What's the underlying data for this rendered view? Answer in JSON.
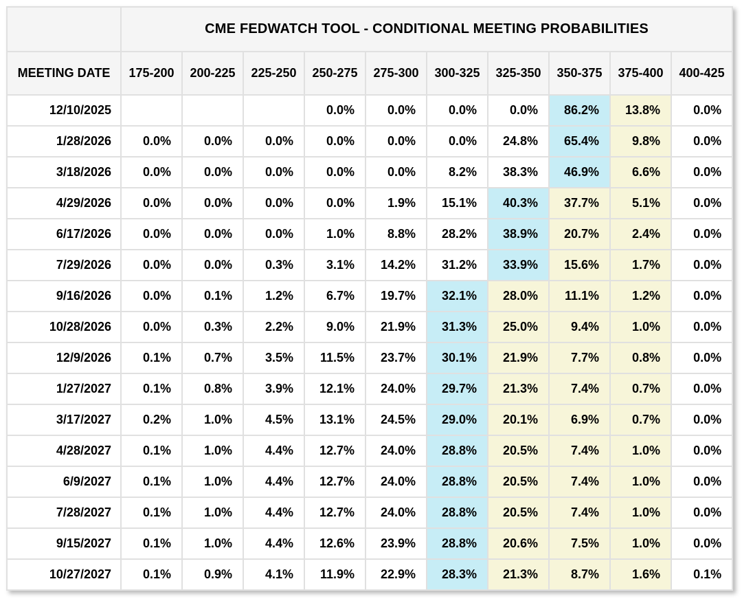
{
  "chart_data": {
    "type": "table",
    "title": "CME FEDWATCH TOOL - CONDITIONAL MEETING PROBABILITIES",
    "row_header": "MEETING DATE",
    "columns": [
      "175-200",
      "200-225",
      "225-250",
      "250-275",
      "275-300",
      "300-325",
      "325-350",
      "350-375",
      "375-400",
      "400-425"
    ],
    "rows": [
      {
        "date": "12/10/2025",
        "values": [
          "",
          "",
          "",
          "0.0%",
          "0.0%",
          "0.0%",
          "0.0%",
          "86.2%",
          "13.8%",
          "0.0%"
        ],
        "cell_colors": [
          "",
          "",
          "",
          "",
          "",
          "",
          "",
          "blue",
          "yellow",
          ""
        ]
      },
      {
        "date": "1/28/2026",
        "values": [
          "0.0%",
          "0.0%",
          "0.0%",
          "0.0%",
          "0.0%",
          "0.0%",
          "24.8%",
          "65.4%",
          "9.8%",
          "0.0%"
        ],
        "cell_colors": [
          "",
          "",
          "",
          "",
          "",
          "",
          "",
          "blue",
          "yellow",
          ""
        ]
      },
      {
        "date": "3/18/2026",
        "values": [
          "0.0%",
          "0.0%",
          "0.0%",
          "0.0%",
          "0.0%",
          "8.2%",
          "38.3%",
          "46.9%",
          "6.6%",
          "0.0%"
        ],
        "cell_colors": [
          "",
          "",
          "",
          "",
          "",
          "",
          "",
          "blue",
          "yellow",
          ""
        ]
      },
      {
        "date": "4/29/2026",
        "values": [
          "0.0%",
          "0.0%",
          "0.0%",
          "0.0%",
          "1.9%",
          "15.1%",
          "40.3%",
          "37.7%",
          "5.1%",
          "0.0%"
        ],
        "cell_colors": [
          "",
          "",
          "",
          "",
          "",
          "",
          "blue",
          "yellow",
          "yellow",
          ""
        ]
      },
      {
        "date": "6/17/2026",
        "values": [
          "0.0%",
          "0.0%",
          "0.0%",
          "1.0%",
          "8.8%",
          "28.2%",
          "38.9%",
          "20.7%",
          "2.4%",
          "0.0%"
        ],
        "cell_colors": [
          "",
          "",
          "",
          "",
          "",
          "",
          "blue",
          "yellow",
          "yellow",
          ""
        ]
      },
      {
        "date": "7/29/2026",
        "values": [
          "0.0%",
          "0.0%",
          "0.3%",
          "3.1%",
          "14.2%",
          "31.2%",
          "33.9%",
          "15.6%",
          "1.7%",
          "0.0%"
        ],
        "cell_colors": [
          "",
          "",
          "",
          "",
          "",
          "",
          "blue",
          "yellow",
          "yellow",
          ""
        ]
      },
      {
        "date": "9/16/2026",
        "values": [
          "0.0%",
          "0.1%",
          "1.2%",
          "6.7%",
          "19.7%",
          "32.1%",
          "28.0%",
          "11.1%",
          "1.2%",
          "0.0%"
        ],
        "cell_colors": [
          "",
          "",
          "",
          "",
          "",
          "blue",
          "yellow",
          "yellow",
          "yellow",
          ""
        ]
      },
      {
        "date": "10/28/2026",
        "values": [
          "0.0%",
          "0.3%",
          "2.2%",
          "9.0%",
          "21.9%",
          "31.3%",
          "25.0%",
          "9.4%",
          "1.0%",
          "0.0%"
        ],
        "cell_colors": [
          "",
          "",
          "",
          "",
          "",
          "blue",
          "yellow",
          "yellow",
          "yellow",
          ""
        ]
      },
      {
        "date": "12/9/2026",
        "values": [
          "0.1%",
          "0.7%",
          "3.5%",
          "11.5%",
          "23.7%",
          "30.1%",
          "21.9%",
          "7.7%",
          "0.8%",
          "0.0%"
        ],
        "cell_colors": [
          "",
          "",
          "",
          "",
          "",
          "blue",
          "yellow",
          "yellow",
          "yellow",
          ""
        ]
      },
      {
        "date": "1/27/2027",
        "values": [
          "0.1%",
          "0.8%",
          "3.9%",
          "12.1%",
          "24.0%",
          "29.7%",
          "21.3%",
          "7.4%",
          "0.7%",
          "0.0%"
        ],
        "cell_colors": [
          "",
          "",
          "",
          "",
          "",
          "blue",
          "yellow",
          "yellow",
          "yellow",
          ""
        ]
      },
      {
        "date": "3/17/2027",
        "values": [
          "0.2%",
          "1.0%",
          "4.5%",
          "13.1%",
          "24.5%",
          "29.0%",
          "20.1%",
          "6.9%",
          "0.7%",
          "0.0%"
        ],
        "cell_colors": [
          "",
          "",
          "",
          "",
          "",
          "blue",
          "yellow",
          "yellow",
          "yellow",
          ""
        ]
      },
      {
        "date": "4/28/2027",
        "values": [
          "0.1%",
          "1.0%",
          "4.4%",
          "12.7%",
          "24.0%",
          "28.8%",
          "20.5%",
          "7.4%",
          "1.0%",
          "0.0%"
        ],
        "cell_colors": [
          "",
          "",
          "",
          "",
          "",
          "blue",
          "yellow",
          "yellow",
          "yellow",
          ""
        ]
      },
      {
        "date": "6/9/2027",
        "values": [
          "0.1%",
          "1.0%",
          "4.4%",
          "12.7%",
          "24.0%",
          "28.8%",
          "20.5%",
          "7.4%",
          "1.0%",
          "0.0%"
        ],
        "cell_colors": [
          "",
          "",
          "",
          "",
          "",
          "blue",
          "yellow",
          "yellow",
          "yellow",
          ""
        ]
      },
      {
        "date": "7/28/2027",
        "values": [
          "0.1%",
          "1.0%",
          "4.4%",
          "12.7%",
          "24.0%",
          "28.8%",
          "20.5%",
          "7.4%",
          "1.0%",
          "0.0%"
        ],
        "cell_colors": [
          "",
          "",
          "",
          "",
          "",
          "blue",
          "yellow",
          "yellow",
          "yellow",
          ""
        ]
      },
      {
        "date": "9/15/2027",
        "values": [
          "0.1%",
          "1.0%",
          "4.4%",
          "12.6%",
          "23.9%",
          "28.8%",
          "20.6%",
          "7.5%",
          "1.0%",
          "0.0%"
        ],
        "cell_colors": [
          "",
          "",
          "",
          "",
          "",
          "blue",
          "yellow",
          "yellow",
          "yellow",
          ""
        ]
      },
      {
        "date": "10/27/2027",
        "values": [
          "0.1%",
          "0.9%",
          "4.1%",
          "11.9%",
          "22.9%",
          "28.3%",
          "21.3%",
          "8.7%",
          "1.6%",
          "0.1%"
        ],
        "cell_colors": [
          "",
          "",
          "",
          "",
          "",
          "blue",
          "yellow",
          "yellow",
          "yellow",
          ""
        ]
      }
    ],
    "colors": {
      "highlight_blue": "#c7edf6",
      "highlight_yellow": "#f7f5d9",
      "header_bg": "#f5f5f5",
      "border": "#e0e0e0",
      "text": "#000000"
    }
  }
}
